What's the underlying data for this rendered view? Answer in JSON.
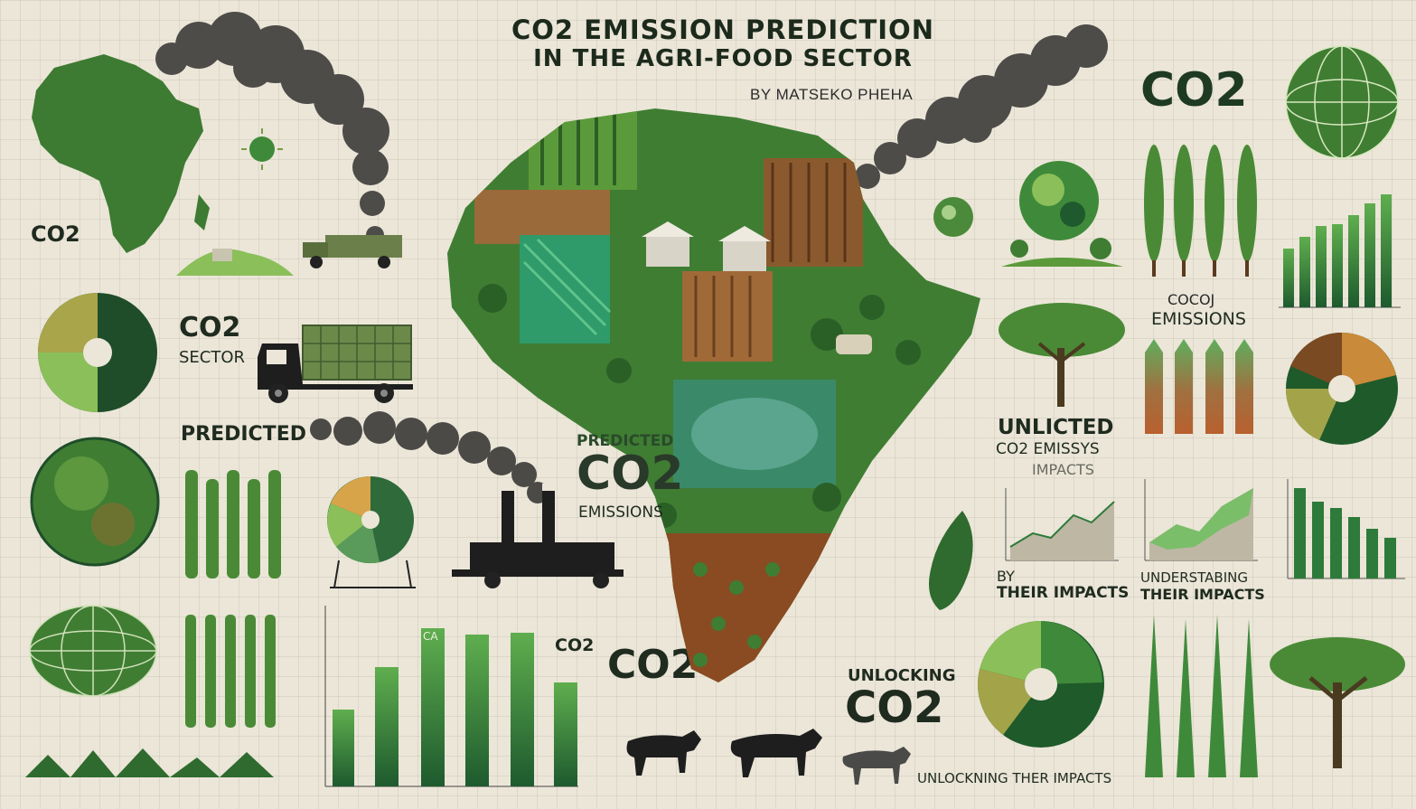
{
  "title": {
    "line1": "CO2 EMISSION PREDICTION",
    "line2": "IN THE AGRI-FOOD SECTOR"
  },
  "byline": "BY MATSEKO PHEHA",
  "labels": {
    "co2_small_left": "CO2",
    "co2_sector_a": "CO2",
    "co2_sector_b": "SECTOR",
    "predicted_left": "PREDICTED",
    "predicted_center_a": "PREDICTED",
    "predicted_center_b": "CO2",
    "predicted_center_c": "EMISSIONS",
    "co2_bottom_center": "CO2",
    "unlocking_a": "UNLOCKING",
    "unlocking_b": "CO2",
    "co2_top_right": "CO2",
    "cocoj_a": "COCOJ",
    "cocoj_b": "EMISSIONS",
    "unlicted_a": "UNLICTED",
    "unlicted_b": "CO2 EMISSYS",
    "unlicted_c": "IMPACTS",
    "by_impacts_a": "BY",
    "by_impacts_b": "THEIR IMPACTS",
    "understabing_a": "UNDERSTABING",
    "understabing_b": "THEIR IMPACTS",
    "unlocking_impacts": "UNLOCKNING THER IMPACTS",
    "ca_label": "CA",
    "co2_chart_label": "CO2"
  },
  "icons": [
    "africa-map-icon",
    "smoke-cloud-icon",
    "truck-icon",
    "factory-icon",
    "globe-icon",
    "pie-chart-icon",
    "bar-chart-icon",
    "line-chart-icon",
    "tree-icon",
    "cow-icon",
    "sun-icon",
    "farm-barn-icon"
  ],
  "colors": {
    "dark_green": "#1e5a2e",
    "mid_green": "#3f8a3a",
    "light_green": "#8bbf5a",
    "olive": "#a3a44a",
    "brown": "#7a4a22",
    "orange": "#c98a3a",
    "smoke": "#3a3a38",
    "cream": "#ebe6d8"
  }
}
